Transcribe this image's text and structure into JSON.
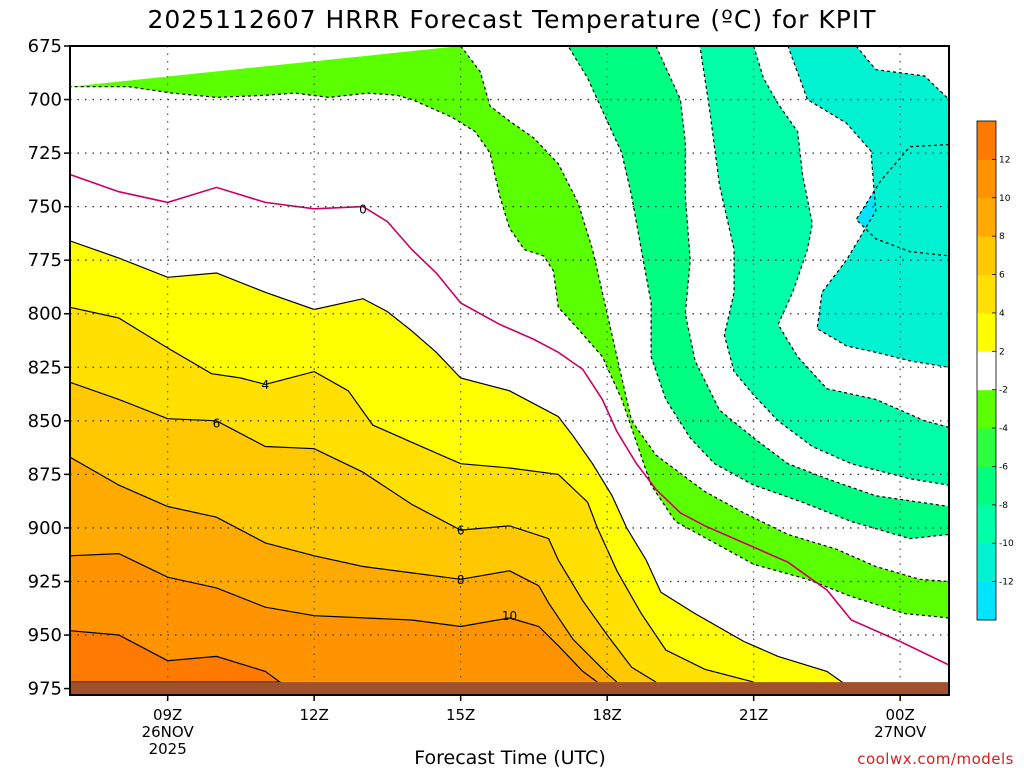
{
  "chart_data": {
    "type": "contour",
    "title": "2025112607 HRRR Forecast Temperature (ºC) for KPIT",
    "xlabel": "Forecast Time (UTC)",
    "ylabel": "",
    "credit": "coolwx.com/models",
    "x_domain_hours": [
      7,
      25
    ],
    "ylim": [
      978,
      675
    ],
    "x_ticks": [
      {
        "hour": 9,
        "label": "09Z",
        "sub1": "26NOV",
        "sub2": "2025"
      },
      {
        "hour": 12,
        "label": "12Z",
        "sub1": "",
        "sub2": ""
      },
      {
        "hour": 15,
        "label": "15Z",
        "sub1": "",
        "sub2": ""
      },
      {
        "hour": 18,
        "label": "18Z",
        "sub1": "",
        "sub2": ""
      },
      {
        "hour": 21,
        "label": "21Z",
        "sub1": "",
        "sub2": ""
      },
      {
        "hour": 24,
        "label": "00Z",
        "sub1": "27NOV",
        "sub2": ""
      }
    ],
    "y_ticks": [
      675,
      700,
      725,
      750,
      775,
      800,
      825,
      850,
      875,
      900,
      925,
      950,
      975
    ],
    "colorbar": {
      "levels": [
        -14,
        -12,
        -10,
        -8,
        -6,
        -4,
        -2,
        2,
        4,
        6,
        8,
        10,
        12,
        14
      ],
      "labels": [
        "-12",
        "-10",
        "-8",
        "-6",
        "-4",
        "-2",
        "2",
        "4",
        "6",
        "8",
        "10",
        "12"
      ],
      "colors": [
        "#00e5ff",
        "#00f2d0",
        "#00ffa8",
        "#00ff80",
        "#2cff40",
        "#5aff00",
        "#ffffff",
        "#ffff00",
        "#ffe000",
        "#ffc800",
        "#ffaa00",
        "#ff9400",
        "#ff7a00"
      ]
    },
    "ground_color": "#a0522d",
    "ground_top_hpa": [
      {
        "hour": 7.0,
        "p": 972
      },
      {
        "hour": 24.0,
        "p": 972
      },
      {
        "hour": 25.0,
        "p": 972
      }
    ],
    "isotherms": [
      {
        "temp": -12,
        "color": "#00e5ff",
        "points": [
          [
            25,
            721
          ],
          [
            24.2,
            722
          ],
          [
            23.6,
            738
          ],
          [
            23.1,
            756
          ],
          [
            23.5,
            765
          ],
          [
            24.2,
            771
          ],
          [
            25,
            773
          ]
        ]
      },
      {
        "temp": -10,
        "color": "#00f2d0",
        "points": [
          [
            23.1,
            675
          ],
          [
            23.5,
            686
          ],
          [
            24.5,
            689
          ],
          [
            25,
            700
          ],
          [
            25,
            825
          ],
          [
            24.2,
            822
          ],
          [
            23.5,
            818
          ],
          [
            22.9,
            815
          ],
          [
            22.3,
            807
          ],
          [
            22.4,
            790
          ],
          [
            22.9,
            775
          ],
          [
            23.5,
            752
          ],
          [
            23.4,
            724
          ],
          [
            22.9,
            711
          ],
          [
            22.1,
            700
          ],
          [
            21.7,
            675
          ]
        ]
      },
      {
        "temp": -8,
        "color": "#00ffa8",
        "points": [
          [
            21.0,
            675
          ],
          [
            21.2,
            690
          ],
          [
            21.5,
            702
          ],
          [
            21.9,
            715
          ],
          [
            22.0,
            735
          ],
          [
            22.2,
            758
          ],
          [
            22.1,
            770
          ],
          [
            21.8,
            790
          ],
          [
            21.5,
            805
          ],
          [
            21.9,
            820
          ],
          [
            22.5,
            835
          ],
          [
            23.5,
            840
          ],
          [
            24.5,
            850
          ],
          [
            25,
            853
          ],
          [
            25,
            880
          ],
          [
            24.2,
            877
          ],
          [
            23.0,
            870
          ],
          [
            22.2,
            862
          ],
          [
            21.5,
            850
          ],
          [
            21.0,
            838
          ],
          [
            20.6,
            827
          ],
          [
            20.4,
            810
          ],
          [
            20.6,
            790
          ],
          [
            20.6,
            770
          ],
          [
            20.3,
            740
          ],
          [
            20.1,
            705
          ],
          [
            20.0,
            690
          ],
          [
            19.9,
            675
          ]
        ]
      },
      {
        "temp": -6,
        "color": "#00ff80",
        "points": [
          [
            19.0,
            675
          ],
          [
            19.3,
            690
          ],
          [
            19.5,
            700
          ],
          [
            19.6,
            720
          ],
          [
            19.6,
            745
          ],
          [
            19.7,
            775
          ],
          [
            19.6,
            800
          ],
          [
            19.8,
            822
          ],
          [
            20.3,
            845
          ],
          [
            21.0,
            858
          ],
          [
            21.7,
            870
          ],
          [
            22.5,
            877
          ],
          [
            23.5,
            885
          ],
          [
            25,
            890
          ],
          [
            25,
            903
          ],
          [
            24.2,
            905
          ],
          [
            23.0,
            897
          ],
          [
            22.0,
            888
          ],
          [
            21.0,
            880
          ],
          [
            20.2,
            870
          ],
          [
            19.7,
            858
          ],
          [
            19.2,
            840
          ],
          [
            18.9,
            820
          ],
          [
            18.9,
            795
          ],
          [
            18.7,
            770
          ],
          [
            18.5,
            745
          ],
          [
            18.3,
            725
          ],
          [
            17.9,
            705
          ],
          [
            17.6,
            690
          ],
          [
            17.2,
            675
          ]
        ]
      },
      {
        "temp": -4,
        "color": "#5aff00",
        "points": [
          [
            15.0,
            675
          ],
          [
            15.4,
            687
          ],
          [
            15.6,
            703
          ],
          [
            16.0,
            710
          ],
          [
            16.5,
            718
          ],
          [
            17.0,
            730
          ],
          [
            17.4,
            748
          ],
          [
            17.7,
            770
          ],
          [
            18.0,
            800
          ],
          [
            18.2,
            820
          ],
          [
            18.5,
            850
          ],
          [
            19.0,
            866
          ],
          [
            20.0,
            883
          ],
          [
            20.8,
            893
          ],
          [
            21.7,
            903
          ],
          [
            22.7,
            910
          ],
          [
            23.5,
            918
          ],
          [
            24.4,
            924
          ],
          [
            25,
            925
          ],
          [
            25,
            942
          ],
          [
            24.1,
            940
          ],
          [
            23.0,
            932
          ],
          [
            22.1,
            924
          ],
          [
            21.0,
            917
          ],
          [
            20.2,
            907
          ],
          [
            19.4,
            897
          ],
          [
            18.9,
            880
          ],
          [
            18.6,
            860
          ],
          [
            18.3,
            840
          ],
          [
            17.9,
            820
          ],
          [
            17.4,
            807
          ],
          [
            17.0,
            797
          ],
          [
            16.9,
            780
          ],
          [
            16.7,
            773
          ],
          [
            16.3,
            770
          ],
          [
            16.0,
            760
          ],
          [
            15.8,
            745
          ],
          [
            15.6,
            725
          ],
          [
            15.3,
            715
          ],
          [
            14.8,
            708
          ],
          [
            14.0,
            700
          ],
          [
            13.7,
            698
          ],
          [
            13.1,
            697
          ],
          [
            12.3,
            699
          ],
          [
            11.6,
            697
          ],
          [
            11.0,
            698
          ],
          [
            10.0,
            699
          ],
          [
            9.1,
            697
          ],
          [
            8.2,
            694
          ],
          [
            7.0,
            694
          ]
        ]
      },
      {
        "temp": 0,
        "color": "#cc0066",
        "points": [
          [
            7.0,
            735
          ],
          [
            8.0,
            743
          ],
          [
            9.0,
            748
          ],
          [
            10.0,
            741
          ],
          [
            11.0,
            748
          ],
          [
            12.0,
            751
          ],
          [
            13.0,
            750
          ],
          [
            13.5,
            757
          ],
          [
            14.0,
            770
          ],
          [
            14.5,
            781
          ],
          [
            15.0,
            795
          ],
          [
            15.8,
            805
          ],
          [
            16.5,
            812
          ],
          [
            17.0,
            818
          ],
          [
            17.5,
            826
          ],
          [
            17.9,
            840
          ],
          [
            18.2,
            855
          ],
          [
            18.6,
            870
          ],
          [
            19.0,
            882
          ],
          [
            19.5,
            893
          ],
          [
            20.0,
            899
          ],
          [
            20.8,
            907
          ],
          [
            21.7,
            916
          ],
          [
            22.5,
            929
          ],
          [
            23.0,
            943
          ],
          [
            24.0,
            953
          ],
          [
            25,
            964
          ]
        ]
      },
      {
        "temp": 2,
        "color": "#ffff00",
        "points": [
          [
            7.0,
            766
          ],
          [
            8.0,
            774
          ],
          [
            9.0,
            783
          ],
          [
            10.0,
            781
          ],
          [
            11.0,
            790
          ],
          [
            12.0,
            798
          ],
          [
            13.0,
            793
          ],
          [
            13.5,
            799
          ],
          [
            14.0,
            808
          ],
          [
            14.5,
            818
          ],
          [
            15.0,
            830
          ],
          [
            16.0,
            836
          ],
          [
            17.0,
            848
          ],
          [
            17.3,
            857
          ],
          [
            17.7,
            870
          ],
          [
            18.1,
            885
          ],
          [
            18.4,
            900
          ],
          [
            18.8,
            915
          ],
          [
            19.1,
            930
          ],
          [
            19.8,
            940
          ],
          [
            20.8,
            953
          ],
          [
            21.5,
            960
          ],
          [
            22.5,
            967
          ],
          [
            23.0,
            975
          ]
        ]
      },
      {
        "temp": 4,
        "color": "#ffe000",
        "points": [
          [
            7.0,
            797
          ],
          [
            8.0,
            802
          ],
          [
            9.0,
            816
          ],
          [
            9.9,
            828
          ],
          [
            10.5,
            830
          ],
          [
            11.0,
            833
          ],
          [
            12.0,
            827
          ],
          [
            12.7,
            836
          ],
          [
            13.2,
            852
          ],
          [
            14.0,
            860
          ],
          [
            15.0,
            870
          ],
          [
            16.0,
            872
          ],
          [
            17.0,
            875
          ],
          [
            17.6,
            888
          ],
          [
            17.8,
            900
          ],
          [
            18.2,
            920
          ],
          [
            18.7,
            940
          ],
          [
            19.2,
            957
          ],
          [
            20.0,
            966
          ],
          [
            21.0,
            972
          ]
        ]
      },
      {
        "temp": 6,
        "color": "#ffc800",
        "points": [
          [
            7.0,
            832
          ],
          [
            8.0,
            840
          ],
          [
            9.0,
            849
          ],
          [
            10.0,
            850
          ],
          [
            11.0,
            862
          ],
          [
            12.0,
            863
          ],
          [
            13.0,
            874
          ],
          [
            14.0,
            889
          ],
          [
            15.0,
            901
          ],
          [
            16.0,
            899
          ],
          [
            16.8,
            905
          ],
          [
            17.0,
            915
          ],
          [
            17.5,
            934
          ],
          [
            18.0,
            950
          ],
          [
            18.5,
            965
          ],
          [
            19.0,
            972
          ]
        ]
      },
      {
        "temp": 8,
        "color": "#ffaa00",
        "points": [
          [
            7.0,
            867
          ],
          [
            8.0,
            880
          ],
          [
            9.0,
            890
          ],
          [
            10.0,
            895
          ],
          [
            11.0,
            907
          ],
          [
            12.0,
            913
          ],
          [
            13.0,
            918
          ],
          [
            14.0,
            921
          ],
          [
            15.0,
            924
          ],
          [
            16.0,
            920
          ],
          [
            16.6,
            927
          ],
          [
            16.8,
            935
          ],
          [
            17.3,
            952
          ],
          [
            18.0,
            968
          ],
          [
            18.2,
            972
          ]
        ]
      },
      {
        "temp": 10,
        "color": "#ff9400",
        "points": [
          [
            7.0,
            913
          ],
          [
            8.0,
            912
          ],
          [
            9.0,
            923
          ],
          [
            10.0,
            928
          ],
          [
            11.0,
            937
          ],
          [
            12.0,
            941
          ],
          [
            13.0,
            942
          ],
          [
            14.0,
            943
          ],
          [
            15.0,
            946
          ],
          [
            16.0,
            942
          ],
          [
            16.6,
            946
          ],
          [
            17.0,
            955
          ],
          [
            17.5,
            967
          ],
          [
            17.8,
            972
          ]
        ]
      },
      {
        "temp": 12,
        "color": "#ff7a00",
        "points": [
          [
            7.0,
            948
          ],
          [
            8.0,
            950
          ],
          [
            9.0,
            962
          ],
          [
            10.0,
            960
          ],
          [
            11.0,
            967
          ],
          [
            11.3,
            972
          ],
          [
            7.0,
            972
          ]
        ]
      }
    ],
    "contour_labels": [
      {
        "text": "0",
        "hour": 13.0,
        "p": 751
      },
      {
        "text": "4",
        "hour": 11.0,
        "p": 833
      },
      {
        "text": "6",
        "hour": 10.0,
        "p": 851
      },
      {
        "text": "6",
        "hour": 15.0,
        "p": 901
      },
      {
        "text": "8",
        "hour": 15.0,
        "p": 924
      },
      {
        "text": "10",
        "hour": 16.0,
        "p": 941
      }
    ]
  }
}
